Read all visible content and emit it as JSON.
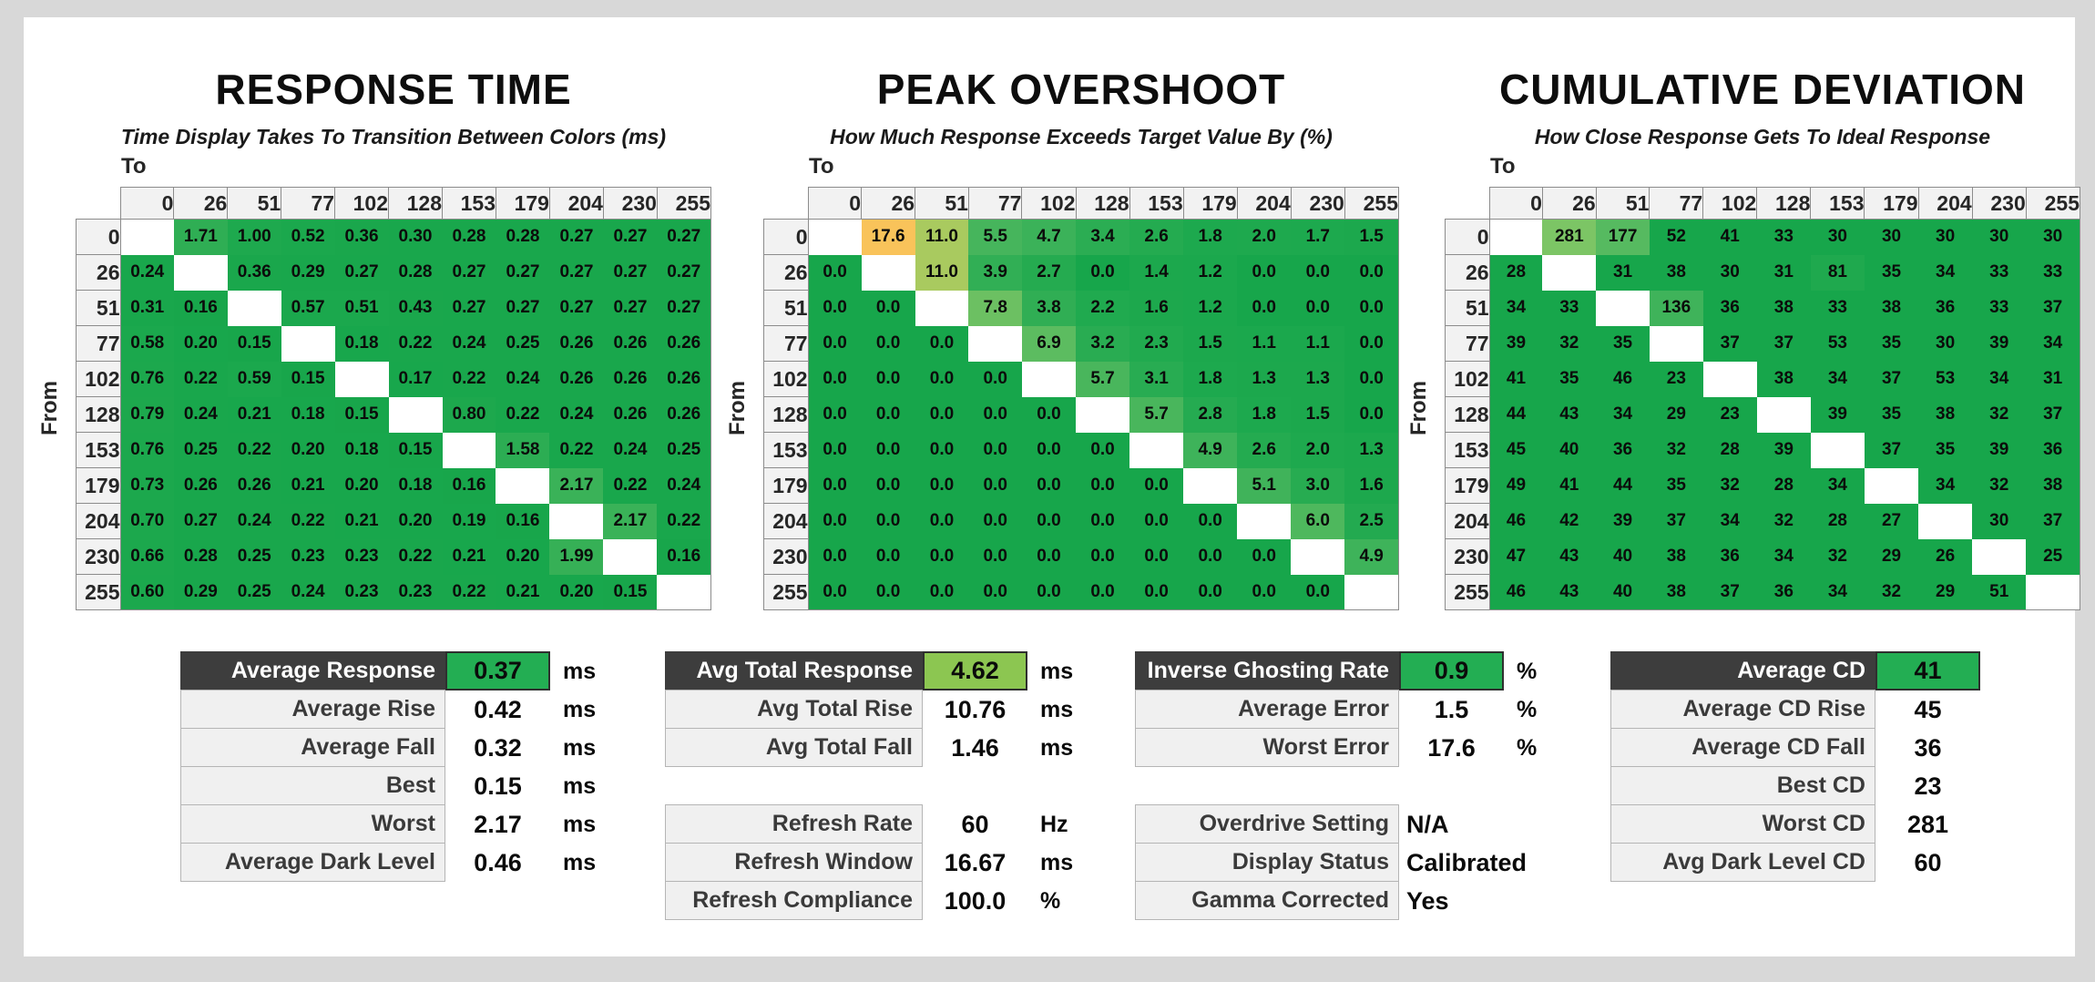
{
  "page": {
    "background": "#d8d8d8",
    "card_background": "#ffffff"
  },
  "colors": {
    "matrix_base_green": "#17a64b",
    "matrix_diagonal": "#ffffff",
    "overshoot_max_orange": "#f9c35a",
    "summary_header_bg": "#3d3d3d",
    "summary_highlight_green": "#23ae53",
    "summary_highlight_lightgreen": "#8cc651",
    "header_cell_bg": "#f2f2f2",
    "label_cell_bg": "#f0f0f0"
  },
  "chart_data": [
    {
      "type": "heatmap",
      "title": "RESPONSE TIME",
      "subtitle": "Time Display Takes To Transition Between Colors (ms)",
      "x_label": "To",
      "y_label": "From",
      "units": "ms",
      "categories": [
        "0",
        "26",
        "51",
        "77",
        "102",
        "128",
        "153",
        "179",
        "204",
        "230",
        "255"
      ],
      "rows": [
        [
          null,
          "1.71",
          "1.00",
          "0.52",
          "0.36",
          "0.30",
          "0.28",
          "0.28",
          "0.27",
          "0.27",
          "0.27"
        ],
        [
          "0.24",
          null,
          "0.36",
          "0.29",
          "0.27",
          "0.28",
          "0.27",
          "0.27",
          "0.27",
          "0.27",
          "0.27"
        ],
        [
          "0.31",
          "0.16",
          null,
          "0.57",
          "0.51",
          "0.43",
          "0.27",
          "0.27",
          "0.27",
          "0.27",
          "0.27"
        ],
        [
          "0.58",
          "0.20",
          "0.15",
          null,
          "0.18",
          "0.22",
          "0.24",
          "0.25",
          "0.26",
          "0.26",
          "0.26"
        ],
        [
          "0.76",
          "0.22",
          "0.59",
          "0.15",
          null,
          "0.17",
          "0.22",
          "0.24",
          "0.26",
          "0.26",
          "0.26"
        ],
        [
          "0.79",
          "0.24",
          "0.21",
          "0.18",
          "0.15",
          null,
          "0.80",
          "0.22",
          "0.24",
          "0.26",
          "0.26"
        ],
        [
          "0.76",
          "0.25",
          "0.22",
          "0.20",
          "0.18",
          "0.15",
          null,
          "1.58",
          "0.22",
          "0.24",
          "0.25"
        ],
        [
          "0.73",
          "0.26",
          "0.26",
          "0.21",
          "0.20",
          "0.18",
          "0.16",
          null,
          "2.17",
          "0.22",
          "0.24"
        ],
        [
          "0.70",
          "0.27",
          "0.24",
          "0.22",
          "0.21",
          "0.20",
          "0.19",
          "0.16",
          null,
          "2.17",
          "0.22"
        ],
        [
          "0.66",
          "0.28",
          "0.25",
          "0.23",
          "0.23",
          "0.22",
          "0.21",
          "0.20",
          "1.99",
          null,
          "0.16"
        ],
        [
          "0.60",
          "0.29",
          "0.25",
          "0.24",
          "0.23",
          "0.23",
          "0.22",
          "0.21",
          "0.20",
          "0.15",
          null
        ]
      ],
      "color_stops": [
        [
          0.0,
          "#17a64b"
        ],
        [
          1.0,
          "#1ea94e"
        ],
        [
          1.6,
          "#2cad53"
        ],
        [
          2.2,
          "#3bb258"
        ]
      ]
    },
    {
      "type": "heatmap",
      "title": "PEAK OVERSHOOT",
      "subtitle": "How Much Response Exceeds Target Value By (%)",
      "x_label": "To",
      "y_label": "From",
      "units": "%",
      "categories": [
        "0",
        "26",
        "51",
        "77",
        "102",
        "128",
        "153",
        "179",
        "204",
        "230",
        "255"
      ],
      "rows": [
        [
          null,
          "17.6",
          "11.0",
          "5.5",
          "4.7",
          "3.4",
          "2.6",
          "1.8",
          "2.0",
          "1.7",
          "1.5"
        ],
        [
          "0.0",
          null,
          "11.0",
          "3.9",
          "2.7",
          "0.0",
          "1.4",
          "1.2",
          "0.0",
          "0.0",
          "0.0"
        ],
        [
          "0.0",
          "0.0",
          null,
          "7.8",
          "3.8",
          "2.2",
          "1.6",
          "1.2",
          "0.0",
          "0.0",
          "0.0"
        ],
        [
          "0.0",
          "0.0",
          "0.0",
          null,
          "6.9",
          "3.2",
          "2.3",
          "1.5",
          "1.1",
          "1.1",
          "0.0"
        ],
        [
          "0.0",
          "0.0",
          "0.0",
          "0.0",
          null,
          "5.7",
          "3.1",
          "1.8",
          "1.3",
          "1.3",
          "0.0"
        ],
        [
          "0.0",
          "0.0",
          "0.0",
          "0.0",
          "0.0",
          null,
          "5.7",
          "2.8",
          "1.8",
          "1.5",
          "0.0"
        ],
        [
          "0.0",
          "0.0",
          "0.0",
          "0.0",
          "0.0",
          "0.0",
          null,
          "4.9",
          "2.6",
          "2.0",
          "1.3"
        ],
        [
          "0.0",
          "0.0",
          "0.0",
          "0.0",
          "0.0",
          "0.0",
          "0.0",
          null,
          "5.1",
          "3.0",
          "1.6"
        ],
        [
          "0.0",
          "0.0",
          "0.0",
          "0.0",
          "0.0",
          "0.0",
          "0.0",
          "0.0",
          null,
          "6.0",
          "2.5"
        ],
        [
          "0.0",
          "0.0",
          "0.0",
          "0.0",
          "0.0",
          "0.0",
          "0.0",
          "0.0",
          "0.0",
          null,
          "4.9"
        ],
        [
          "0.0",
          "0.0",
          "0.0",
          "0.0",
          "0.0",
          "0.0",
          "0.0",
          "0.0",
          "0.0",
          "0.0",
          null
        ]
      ],
      "color_stops": [
        [
          0.0,
          "#17a64b"
        ],
        [
          2.0,
          "#1ea94e"
        ],
        [
          3.5,
          "#2cad53"
        ],
        [
          5.0,
          "#3fb35a"
        ],
        [
          6.5,
          "#55ba5f"
        ],
        [
          8.0,
          "#6fc163"
        ],
        [
          11.0,
          "#a9ca5f"
        ],
        [
          14.0,
          "#d2c75c"
        ],
        [
          17.6,
          "#f9c35a"
        ]
      ]
    },
    {
      "type": "heatmap",
      "title": "CUMULATIVE DEVIATION",
      "subtitle": "How Close Response Gets To Ideal Response",
      "x_label": "To",
      "y_label": "From",
      "units": "",
      "categories": [
        "0",
        "26",
        "51",
        "77",
        "102",
        "128",
        "153",
        "179",
        "204",
        "230",
        "255"
      ],
      "rows": [
        [
          null,
          "281",
          "177",
          "52",
          "41",
          "33",
          "30",
          "30",
          "30",
          "30",
          "30"
        ],
        [
          "28",
          null,
          "31",
          "38",
          "30",
          "31",
          "81",
          "35",
          "34",
          "33",
          "33"
        ],
        [
          "34",
          "33",
          null,
          "136",
          "36",
          "38",
          "33",
          "38",
          "36",
          "33",
          "37"
        ],
        [
          "39",
          "32",
          "35",
          null,
          "37",
          "37",
          "53",
          "35",
          "30",
          "39",
          "34"
        ],
        [
          "41",
          "35",
          "46",
          "23",
          null,
          "38",
          "34",
          "37",
          "53",
          "34",
          "31"
        ],
        [
          "44",
          "43",
          "34",
          "29",
          "23",
          null,
          "39",
          "35",
          "38",
          "32",
          "37"
        ],
        [
          "45",
          "40",
          "36",
          "32",
          "28",
          "39",
          null,
          "37",
          "35",
          "39",
          "36"
        ],
        [
          "49",
          "41",
          "44",
          "35",
          "32",
          "28",
          "34",
          null,
          "34",
          "32",
          "38"
        ],
        [
          "46",
          "42",
          "39",
          "37",
          "34",
          "32",
          "28",
          "27",
          null,
          "30",
          "37"
        ],
        [
          "47",
          "43",
          "40",
          "38",
          "36",
          "34",
          "32",
          "29",
          "26",
          null,
          "25"
        ],
        [
          "46",
          "43",
          "40",
          "38",
          "37",
          "36",
          "34",
          "32",
          "29",
          "51",
          null
        ]
      ],
      "color_stops": [
        [
          23,
          "#17a64b"
        ],
        [
          60,
          "#17a64b"
        ],
        [
          85,
          "#20a94f"
        ],
        [
          136,
          "#3fb35a"
        ],
        [
          180,
          "#58bb60"
        ],
        [
          281,
          "#7cc565"
        ]
      ]
    }
  ],
  "summary_tables": [
    {
      "groups": [
        {
          "rows": [
            {
              "label": "Average Response",
              "value": "0.37",
              "unit": "ms",
              "header": true,
              "highlight": "#23ae53"
            },
            {
              "label": "Average Rise",
              "value": "0.42",
              "unit": "ms"
            },
            {
              "label": "Average Fall",
              "value": "0.32",
              "unit": "ms"
            },
            {
              "label": "Best",
              "value": "0.15",
              "unit": "ms"
            },
            {
              "label": "Worst",
              "value": "2.17",
              "unit": "ms"
            },
            {
              "label": "Average Dark Level",
              "value": "0.46",
              "unit": "ms"
            }
          ]
        }
      ]
    },
    {
      "groups": [
        {
          "rows": [
            {
              "label": "Avg Total Response",
              "value": "4.62",
              "unit": "ms",
              "header": true,
              "highlight": "#8cc651"
            },
            {
              "label": "Avg Total Rise",
              "value": "10.76",
              "unit": "ms"
            },
            {
              "label": "Avg Total Fall",
              "value": "1.46",
              "unit": "ms"
            }
          ]
        },
        {
          "rows": [
            {
              "label": "Refresh Rate",
              "value": "60",
              "unit": "Hz"
            },
            {
              "label": "Refresh Window",
              "value": "16.67",
              "unit": "ms"
            },
            {
              "label": "Refresh Compliance",
              "value": "100.0",
              "unit": "%"
            }
          ]
        }
      ]
    },
    {
      "groups": [
        {
          "rows": [
            {
              "label": "Inverse Ghosting Rate",
              "value": "0.9",
              "unit": "%",
              "header": true,
              "highlight": "#23ae53"
            },
            {
              "label": "Average Error",
              "value": "1.5",
              "unit": "%"
            },
            {
              "label": "Worst Error",
              "value": "17.6",
              "unit": "%"
            }
          ]
        },
        {
          "rows": [
            {
              "label": "Overdrive Setting",
              "value": "N/A",
              "unit": "",
              "align": "left"
            },
            {
              "label": "Display Status",
              "value": "Calibrated",
              "unit": "",
              "align": "left"
            },
            {
              "label": "Gamma Corrected",
              "value": "Yes",
              "unit": "",
              "align": "left"
            }
          ]
        }
      ]
    },
    {
      "groups": [
        {
          "rows": [
            {
              "label": "Average CD",
              "value": "41",
              "unit": "",
              "header": true,
              "highlight": "#23ae53"
            },
            {
              "label": "Average CD Rise",
              "value": "45",
              "unit": ""
            },
            {
              "label": "Average CD Fall",
              "value": "36",
              "unit": ""
            },
            {
              "label": "Best CD",
              "value": "23",
              "unit": ""
            },
            {
              "label": "Worst CD",
              "value": "281",
              "unit": ""
            },
            {
              "label": "Avg Dark Level CD",
              "value": "60",
              "unit": ""
            }
          ]
        }
      ]
    }
  ]
}
